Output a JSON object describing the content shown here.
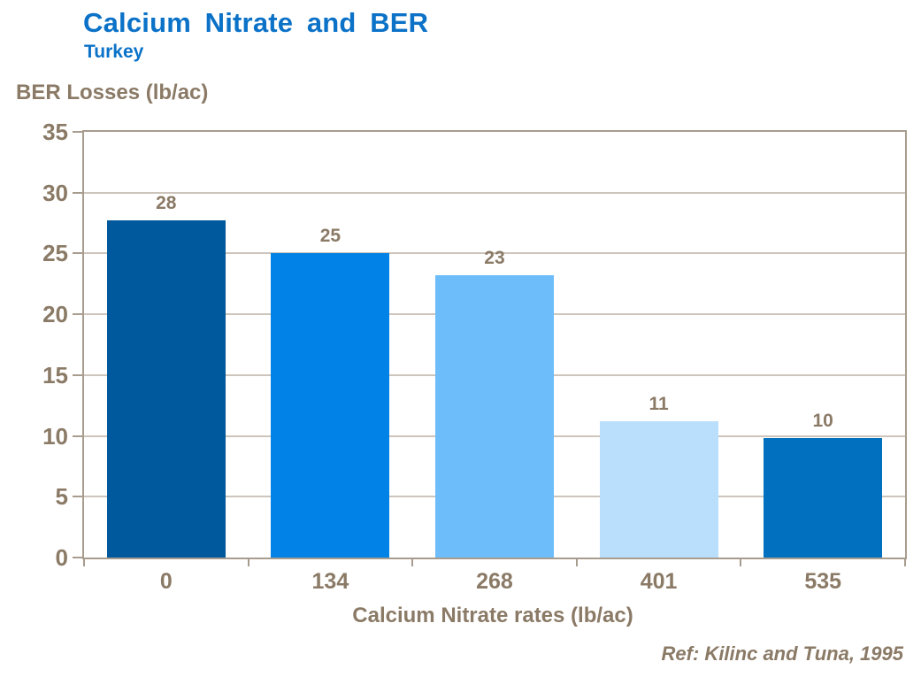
{
  "header": {
    "title": "Calcium Nitrate and BER",
    "subtitle": "Turkey"
  },
  "chart_data": {
    "type": "bar",
    "title": "Calcium Nitrate and BER",
    "subtitle": "Turkey",
    "xlabel": "Calcium Nitrate rates (lb/ac)",
    "ylabel": "BER Losses (lb/ac)",
    "categories": [
      "0",
      "134",
      "268",
      "401",
      "535"
    ],
    "values": [
      28,
      25,
      23,
      11,
      10
    ],
    "plotted_values": [
      27.7,
      25.0,
      23.2,
      11.2,
      9.8
    ],
    "bar_colors": [
      "#00599c",
      "#0082e6",
      "#6cbdfa",
      "#b9dffc",
      "#0070bf"
    ],
    "ylim": [
      0,
      35
    ],
    "yticks": [
      0,
      5,
      10,
      15,
      20,
      25,
      30,
      35
    ],
    "grid": true,
    "legend": false,
    "gridline_color": "#cdc5bb",
    "frame_color": "#a89c8f",
    "axis_text_color": "#8a7a66",
    "title_color": "#0b72c8"
  },
  "footer": {
    "reference": "Ref: Kilinc and Tuna, 1995"
  }
}
